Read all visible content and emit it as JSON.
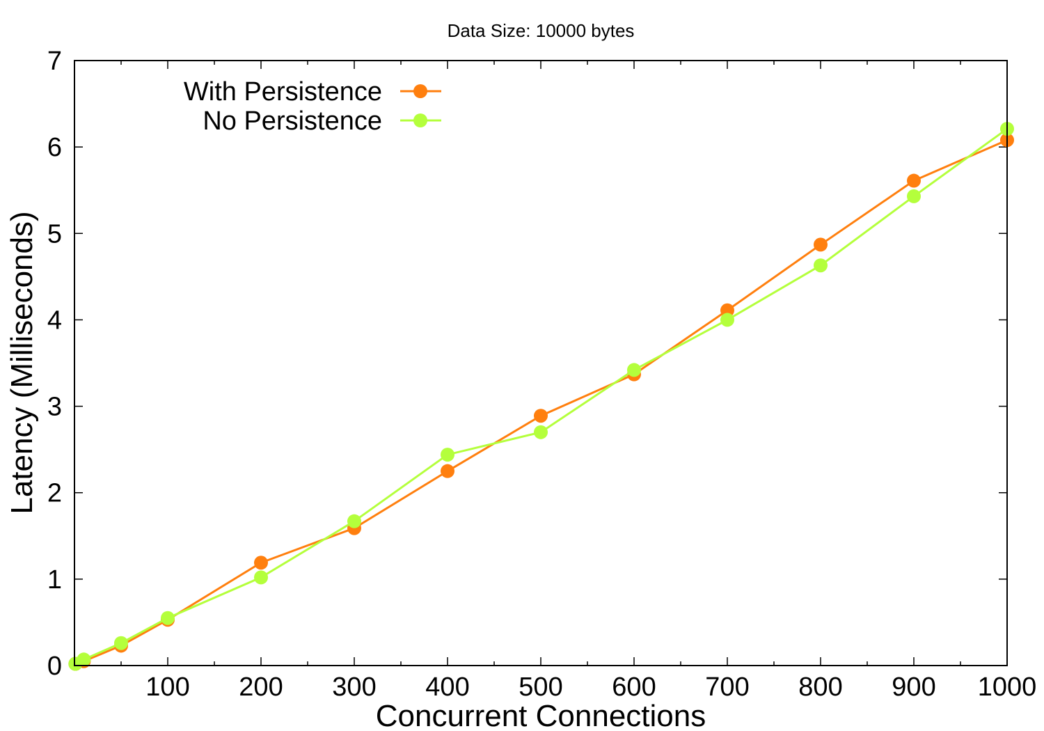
{
  "chart_data": {
    "type": "line",
    "title": "Data Size: 10000 bytes",
    "xlabel": "Concurrent Connections",
    "ylabel": "Latency (Milliseconds)",
    "xlim": [
      0,
      1000
    ],
    "ylim": [
      0,
      7
    ],
    "xticks": [
      100,
      200,
      300,
      400,
      500,
      600,
      700,
      800,
      900,
      1000
    ],
    "yticks": [
      0,
      1,
      2,
      3,
      4,
      5,
      6,
      7
    ],
    "x_minor_step": 50,
    "grid": false,
    "legend_position": "top-left",
    "series": [
      {
        "name": "With Persistence",
        "color": "#ff7f0e",
        "marker": "circle",
        "points": [
          {
            "x": 1,
            "y": 0.02
          },
          {
            "x": 10,
            "y": 0.05
          },
          {
            "x": 50,
            "y": 0.23
          },
          {
            "x": 100,
            "y": 0.53
          },
          {
            "x": 200,
            "y": 1.19
          },
          {
            "x": 300,
            "y": 1.59
          },
          {
            "x": 400,
            "y": 2.25
          },
          {
            "x": 500,
            "y": 2.89
          },
          {
            "x": 600,
            "y": 3.37
          },
          {
            "x": 700,
            "y": 4.11
          },
          {
            "x": 800,
            "y": 4.87
          },
          {
            "x": 900,
            "y": 5.61
          },
          {
            "x": 1000,
            "y": 6.08
          }
        ]
      },
      {
        "name": "No Persistence",
        "color": "#b4ff3c",
        "marker": "circle",
        "points": [
          {
            "x": 1,
            "y": 0.02
          },
          {
            "x": 10,
            "y": 0.07
          },
          {
            "x": 50,
            "y": 0.26
          },
          {
            "x": 100,
            "y": 0.55
          },
          {
            "x": 200,
            "y": 1.02
          },
          {
            "x": 300,
            "y": 1.67
          },
          {
            "x": 400,
            "y": 2.44
          },
          {
            "x": 500,
            "y": 2.7
          },
          {
            "x": 600,
            "y": 3.42
          },
          {
            "x": 700,
            "y": 4.0
          },
          {
            "x": 800,
            "y": 4.63
          },
          {
            "x": 900,
            "y": 5.43
          },
          {
            "x": 1000,
            "y": 6.21
          }
        ]
      }
    ]
  }
}
